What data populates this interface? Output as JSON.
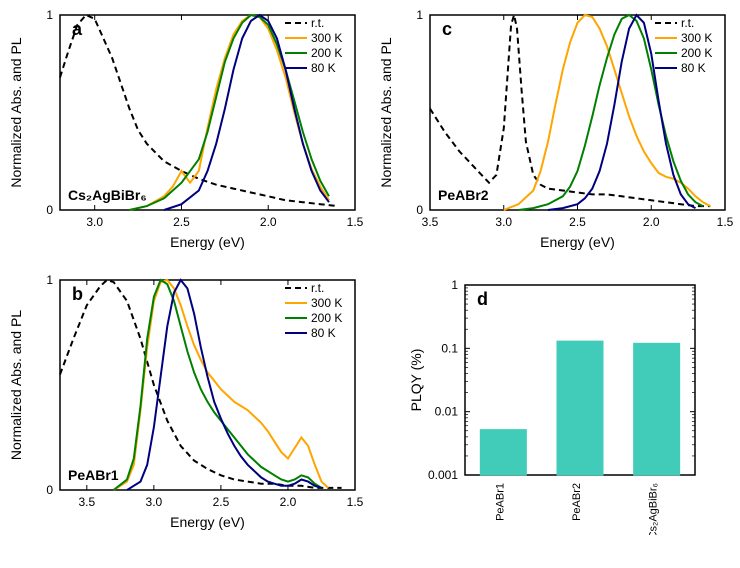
{
  "colors": {
    "rt": "#000000",
    "k300": "#ffa500",
    "k200": "#008000",
    "k80": "#000080",
    "bar_fill": "#40ccb8",
    "axis": "#000000",
    "bg": "#ffffff"
  },
  "line_width": 2,
  "panel_letter_fontsize": 18,
  "axis_label_fontsize": 14,
  "tick_fontsize": 12,
  "legend_fontsize": 12,
  "annotation_fontsize": 14,
  "panels": {
    "a": {
      "letter": "a",
      "annotation": "Cs₂AgBiBr₆",
      "xlabel": "Energy (eV)",
      "ylabel": "Normalized Abs. and PL",
      "xlim": [
        1.5,
        3.2
      ],
      "ylim": [
        0,
        1
      ],
      "xticks": [
        1.5,
        2.0,
        2.5,
        3.0
      ],
      "yticks": [
        0,
        1
      ],
      "legend": [
        "r.t.",
        "300 K",
        "200 K",
        "80 K"
      ],
      "series": {
        "rt": [
          [
            3.2,
            0.68
          ],
          [
            3.15,
            0.82
          ],
          [
            3.1,
            0.95
          ],
          [
            3.05,
            1.0
          ],
          [
            3.0,
            0.98
          ],
          [
            2.9,
            0.78
          ],
          [
            2.8,
            0.52
          ],
          [
            2.75,
            0.41
          ],
          [
            2.7,
            0.34
          ],
          [
            2.6,
            0.25
          ],
          [
            2.5,
            0.2
          ],
          [
            2.4,
            0.16
          ],
          [
            2.3,
            0.13
          ],
          [
            2.2,
            0.11
          ],
          [
            2.1,
            0.09
          ],
          [
            2.0,
            0.07
          ],
          [
            1.9,
            0.05
          ],
          [
            1.8,
            0.04
          ],
          [
            1.7,
            0.03
          ],
          [
            1.6,
            0.02
          ]
        ],
        "k300": [
          [
            2.8,
            0.0
          ],
          [
            2.7,
            0.02
          ],
          [
            2.6,
            0.07
          ],
          [
            2.55,
            0.12
          ],
          [
            2.5,
            0.2
          ],
          [
            2.45,
            0.14
          ],
          [
            2.4,
            0.2
          ],
          [
            2.35,
            0.42
          ],
          [
            2.3,
            0.62
          ],
          [
            2.25,
            0.78
          ],
          [
            2.2,
            0.9
          ],
          [
            2.15,
            0.97
          ],
          [
            2.1,
            1.0
          ],
          [
            2.05,
            0.99
          ],
          [
            2.0,
            0.93
          ],
          [
            1.95,
            0.82
          ],
          [
            1.9,
            0.68
          ],
          [
            1.85,
            0.5
          ],
          [
            1.8,
            0.34
          ],
          [
            1.75,
            0.21
          ],
          [
            1.7,
            0.12
          ],
          [
            1.65,
            0.05
          ]
        ],
        "k200": [
          [
            2.8,
            0.0
          ],
          [
            2.7,
            0.02
          ],
          [
            2.6,
            0.06
          ],
          [
            2.5,
            0.14
          ],
          [
            2.4,
            0.26
          ],
          [
            2.35,
            0.4
          ],
          [
            2.3,
            0.58
          ],
          [
            2.25,
            0.76
          ],
          [
            2.2,
            0.88
          ],
          [
            2.15,
            0.96
          ],
          [
            2.1,
            1.0
          ],
          [
            2.05,
            0.99
          ],
          [
            2.0,
            0.95
          ],
          [
            1.95,
            0.85
          ],
          [
            1.9,
            0.72
          ],
          [
            1.85,
            0.56
          ],
          [
            1.8,
            0.4
          ],
          [
            1.75,
            0.26
          ],
          [
            1.7,
            0.15
          ],
          [
            1.65,
            0.07
          ]
        ],
        "k80": [
          [
            2.6,
            0.0
          ],
          [
            2.5,
            0.03
          ],
          [
            2.4,
            0.1
          ],
          [
            2.35,
            0.2
          ],
          [
            2.3,
            0.34
          ],
          [
            2.25,
            0.52
          ],
          [
            2.2,
            0.72
          ],
          [
            2.15,
            0.88
          ],
          [
            2.1,
            0.97
          ],
          [
            2.05,
            1.0
          ],
          [
            2.0,
            0.97
          ],
          [
            1.95,
            0.88
          ],
          [
            1.9,
            0.72
          ],
          [
            1.85,
            0.52
          ],
          [
            1.8,
            0.34
          ],
          [
            1.75,
            0.2
          ],
          [
            1.7,
            0.1
          ],
          [
            1.65,
            0.04
          ]
        ]
      }
    },
    "b": {
      "letter": "b",
      "annotation": "PeABr1",
      "xlabel": "Energy (eV)",
      "ylabel": "Normalized Abs. and PL",
      "xlim": [
        1.5,
        3.7
      ],
      "ylim": [
        0,
        1
      ],
      "xticks": [
        1.5,
        2.0,
        2.5,
        3.0,
        3.5
      ],
      "yticks": [
        0,
        1
      ],
      "legend": [
        "r.t.",
        "300 K",
        "200 K",
        "80 K"
      ],
      "series": {
        "rt": [
          [
            3.7,
            0.55
          ],
          [
            3.6,
            0.72
          ],
          [
            3.5,
            0.88
          ],
          [
            3.4,
            0.97
          ],
          [
            3.35,
            1.0
          ],
          [
            3.3,
            0.99
          ],
          [
            3.2,
            0.9
          ],
          [
            3.1,
            0.72
          ],
          [
            3.0,
            0.5
          ],
          [
            2.9,
            0.33
          ],
          [
            2.8,
            0.21
          ],
          [
            2.7,
            0.14
          ],
          [
            2.6,
            0.1
          ],
          [
            2.5,
            0.07
          ],
          [
            2.4,
            0.05
          ],
          [
            2.3,
            0.04
          ],
          [
            2.2,
            0.03
          ],
          [
            2.1,
            0.03
          ],
          [
            2.0,
            0.02
          ],
          [
            1.9,
            0.02
          ],
          [
            1.8,
            0.01
          ],
          [
            1.7,
            0.01
          ],
          [
            1.6,
            0.01
          ]
        ],
        "k300": [
          [
            3.3,
            0.0
          ],
          [
            3.2,
            0.04
          ],
          [
            3.15,
            0.12
          ],
          [
            3.1,
            0.38
          ],
          [
            3.05,
            0.68
          ],
          [
            3.0,
            0.9
          ],
          [
            2.95,
            0.99
          ],
          [
            2.9,
            1.0
          ],
          [
            2.85,
            0.96
          ],
          [
            2.8,
            0.88
          ],
          [
            2.75,
            0.78
          ],
          [
            2.7,
            0.69
          ],
          [
            2.65,
            0.62
          ],
          [
            2.6,
            0.56
          ],
          [
            2.55,
            0.52
          ],
          [
            2.5,
            0.48
          ],
          [
            2.45,
            0.45
          ],
          [
            2.4,
            0.42
          ],
          [
            2.35,
            0.4
          ],
          [
            2.3,
            0.38
          ],
          [
            2.25,
            0.35
          ],
          [
            2.2,
            0.32
          ],
          [
            2.15,
            0.28
          ],
          [
            2.1,
            0.23
          ],
          [
            2.05,
            0.18
          ],
          [
            2.0,
            0.15
          ],
          [
            1.95,
            0.2
          ],
          [
            1.9,
            0.25
          ],
          [
            1.85,
            0.21
          ],
          [
            1.8,
            0.12
          ],
          [
            1.75,
            0.04
          ],
          [
            1.7,
            0.01
          ]
        ],
        "k200": [
          [
            3.3,
            0.0
          ],
          [
            3.2,
            0.05
          ],
          [
            3.15,
            0.15
          ],
          [
            3.1,
            0.4
          ],
          [
            3.05,
            0.72
          ],
          [
            3.0,
            0.92
          ],
          [
            2.95,
            1.0
          ],
          [
            2.9,
            0.98
          ],
          [
            2.85,
            0.9
          ],
          [
            2.8,
            0.78
          ],
          [
            2.75,
            0.66
          ],
          [
            2.7,
            0.56
          ],
          [
            2.65,
            0.48
          ],
          [
            2.6,
            0.42
          ],
          [
            2.55,
            0.37
          ],
          [
            2.5,
            0.33
          ],
          [
            2.45,
            0.29
          ],
          [
            2.4,
            0.25
          ],
          [
            2.35,
            0.21
          ],
          [
            2.3,
            0.17
          ],
          [
            2.25,
            0.14
          ],
          [
            2.2,
            0.11
          ],
          [
            2.15,
            0.09
          ],
          [
            2.1,
            0.07
          ],
          [
            2.05,
            0.05
          ],
          [
            2.0,
            0.04
          ],
          [
            1.95,
            0.05
          ],
          [
            1.9,
            0.07
          ],
          [
            1.85,
            0.06
          ],
          [
            1.8,
            0.03
          ],
          [
            1.75,
            0.01
          ]
        ],
        "k80": [
          [
            3.2,
            0.0
          ],
          [
            3.1,
            0.04
          ],
          [
            3.05,
            0.12
          ],
          [
            3.0,
            0.3
          ],
          [
            2.95,
            0.54
          ],
          [
            2.9,
            0.78
          ],
          [
            2.85,
            0.94
          ],
          [
            2.8,
            1.0
          ],
          [
            2.75,
            0.96
          ],
          [
            2.7,
            0.84
          ],
          [
            2.65,
            0.68
          ],
          [
            2.6,
            0.54
          ],
          [
            2.55,
            0.42
          ],
          [
            2.5,
            0.34
          ],
          [
            2.45,
            0.27
          ],
          [
            2.4,
            0.21
          ],
          [
            2.35,
            0.16
          ],
          [
            2.3,
            0.12
          ],
          [
            2.25,
            0.09
          ],
          [
            2.2,
            0.06
          ],
          [
            2.15,
            0.04
          ],
          [
            2.1,
            0.03
          ],
          [
            2.05,
            0.02
          ],
          [
            2.0,
            0.02
          ],
          [
            1.95,
            0.03
          ],
          [
            1.9,
            0.05
          ],
          [
            1.85,
            0.04
          ],
          [
            1.8,
            0.02
          ],
          [
            1.75,
            0.01
          ]
        ]
      }
    },
    "c": {
      "letter": "c",
      "annotation": "PeABr2",
      "xlabel": "Energy (eV)",
      "ylabel": "Normalized Abs. and PL",
      "xlim": [
        1.5,
        3.5
      ],
      "ylim": [
        0,
        1
      ],
      "xticks": [
        1.5,
        2.0,
        2.5,
        3.0,
        3.5
      ],
      "yticks": [
        0,
        1
      ],
      "legend": [
        "r.t.",
        "300 K",
        "200 K",
        "80 K"
      ],
      "series": {
        "rt": [
          [
            3.5,
            0.52
          ],
          [
            3.4,
            0.4
          ],
          [
            3.3,
            0.3
          ],
          [
            3.2,
            0.22
          ],
          [
            3.15,
            0.18
          ],
          [
            3.1,
            0.14
          ],
          [
            3.05,
            0.18
          ],
          [
            3.0,
            0.42
          ],
          [
            2.97,
            0.74
          ],
          [
            2.95,
            0.95
          ],
          [
            2.93,
            1.0
          ],
          [
            2.91,
            0.93
          ],
          [
            2.88,
            0.62
          ],
          [
            2.85,
            0.35
          ],
          [
            2.8,
            0.18
          ],
          [
            2.75,
            0.13
          ],
          [
            2.7,
            0.11
          ],
          [
            2.6,
            0.1
          ],
          [
            2.5,
            0.09
          ],
          [
            2.4,
            0.08
          ],
          [
            2.3,
            0.08
          ],
          [
            2.2,
            0.07
          ],
          [
            2.1,
            0.06
          ],
          [
            2.0,
            0.05
          ],
          [
            1.9,
            0.04
          ],
          [
            1.8,
            0.03
          ],
          [
            1.7,
            0.02
          ],
          [
            1.6,
            0.02
          ]
        ],
        "k300": [
          [
            3.0,
            0.0
          ],
          [
            2.9,
            0.03
          ],
          [
            2.8,
            0.1
          ],
          [
            2.75,
            0.2
          ],
          [
            2.7,
            0.35
          ],
          [
            2.65,
            0.54
          ],
          [
            2.6,
            0.72
          ],
          [
            2.55,
            0.86
          ],
          [
            2.5,
            0.96
          ],
          [
            2.45,
            1.0
          ],
          [
            2.4,
            0.99
          ],
          [
            2.35,
            0.93
          ],
          [
            2.3,
            0.84
          ],
          [
            2.25,
            0.72
          ],
          [
            2.2,
            0.6
          ],
          [
            2.15,
            0.48
          ],
          [
            2.1,
            0.38
          ],
          [
            2.05,
            0.3
          ],
          [
            2.0,
            0.24
          ],
          [
            1.95,
            0.19
          ],
          [
            1.9,
            0.17
          ],
          [
            1.85,
            0.16
          ],
          [
            1.8,
            0.14
          ],
          [
            1.75,
            0.11
          ],
          [
            1.7,
            0.07
          ],
          [
            1.65,
            0.04
          ],
          [
            1.6,
            0.02
          ]
        ],
        "k200": [
          [
            2.9,
            0.0
          ],
          [
            2.8,
            0.01
          ],
          [
            2.7,
            0.03
          ],
          [
            2.6,
            0.07
          ],
          [
            2.55,
            0.12
          ],
          [
            2.5,
            0.2
          ],
          [
            2.45,
            0.33
          ],
          [
            2.4,
            0.48
          ],
          [
            2.35,
            0.64
          ],
          [
            2.3,
            0.78
          ],
          [
            2.25,
            0.9
          ],
          [
            2.2,
            0.98
          ],
          [
            2.15,
            1.0
          ],
          [
            2.1,
            0.97
          ],
          [
            2.05,
            0.88
          ],
          [
            2.0,
            0.72
          ],
          [
            1.95,
            0.54
          ],
          [
            1.9,
            0.38
          ],
          [
            1.85,
            0.25
          ],
          [
            1.8,
            0.15
          ],
          [
            1.75,
            0.08
          ],
          [
            1.7,
            0.04
          ],
          [
            1.65,
            0.02
          ]
        ],
        "k80": [
          [
            2.7,
            0.0
          ],
          [
            2.6,
            0.01
          ],
          [
            2.5,
            0.03
          ],
          [
            2.45,
            0.06
          ],
          [
            2.4,
            0.11
          ],
          [
            2.35,
            0.2
          ],
          [
            2.3,
            0.34
          ],
          [
            2.25,
            0.54
          ],
          [
            2.2,
            0.76
          ],
          [
            2.15,
            0.93
          ],
          [
            2.1,
            1.0
          ],
          [
            2.05,
            0.96
          ],
          [
            2.0,
            0.8
          ],
          [
            1.95,
            0.56
          ],
          [
            1.9,
            0.34
          ],
          [
            1.85,
            0.18
          ],
          [
            1.8,
            0.08
          ],
          [
            1.75,
            0.03
          ],
          [
            1.7,
            0.01
          ]
        ]
      }
    },
    "d": {
      "letter": "d",
      "ylabel": "PLQY (%)",
      "ylim": [
        0.001,
        1
      ],
      "yticks": [
        0.001,
        0.01,
        0.1,
        1
      ],
      "yticklabels": [
        "0.001",
        "0.01",
        "0.1",
        "1"
      ],
      "log": true,
      "categories": [
        "PeABr1",
        "PeABr2",
        "Cs₂AgBiBr₆"
      ],
      "values": [
        0.0052,
        0.13,
        0.12
      ]
    }
  }
}
